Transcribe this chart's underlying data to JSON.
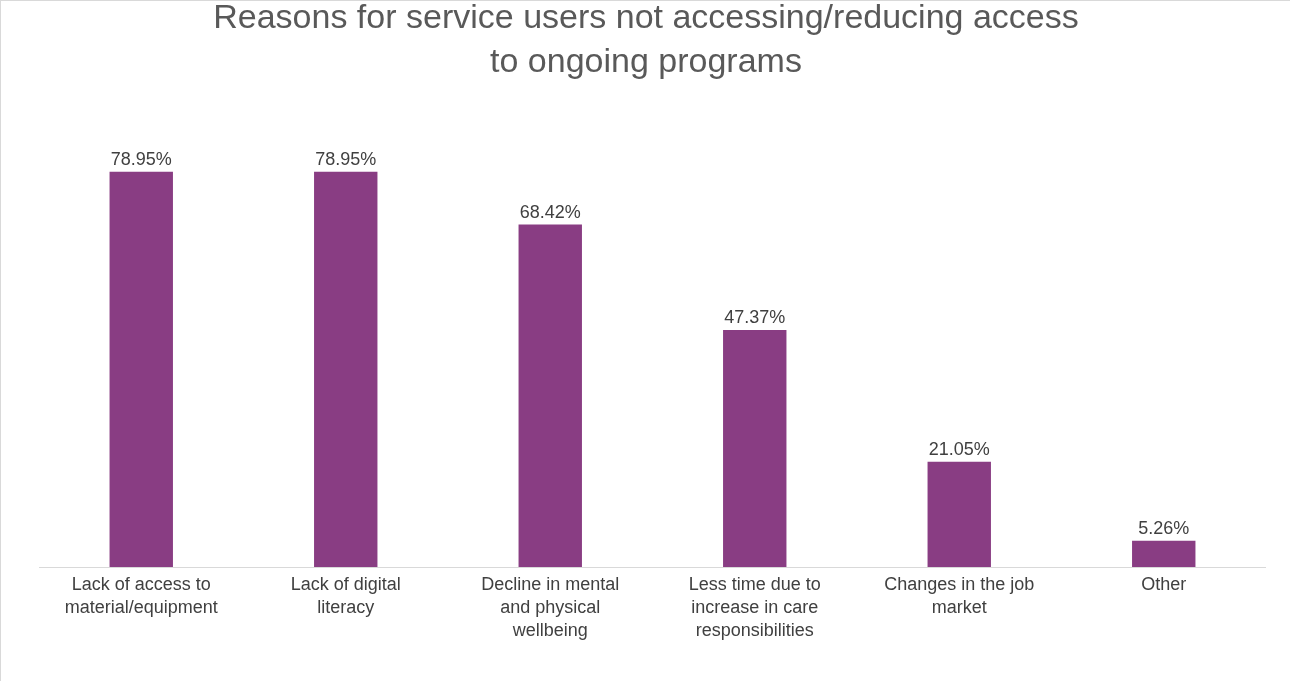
{
  "chart_data": {
    "type": "bar",
    "title": "Reasons for service users not accessing/reducing access to ongoing programs",
    "categories": [
      "Lack of access to material/equipment",
      "Lack of digital literacy",
      "Decline in mental and physical wellbeing",
      "Less time due to increase in care responsibilities",
      "Changes in the job market",
      "Other"
    ],
    "values": [
      78.95,
      78.95,
      68.42,
      47.37,
      21.05,
      5.26
    ],
    "value_labels": [
      "78.95%",
      "78.95%",
      "68.42%",
      "47.37%",
      "21.05%",
      "5.26%"
    ],
    "color": "#893d83",
    "grid": false,
    "legend": false
  }
}
